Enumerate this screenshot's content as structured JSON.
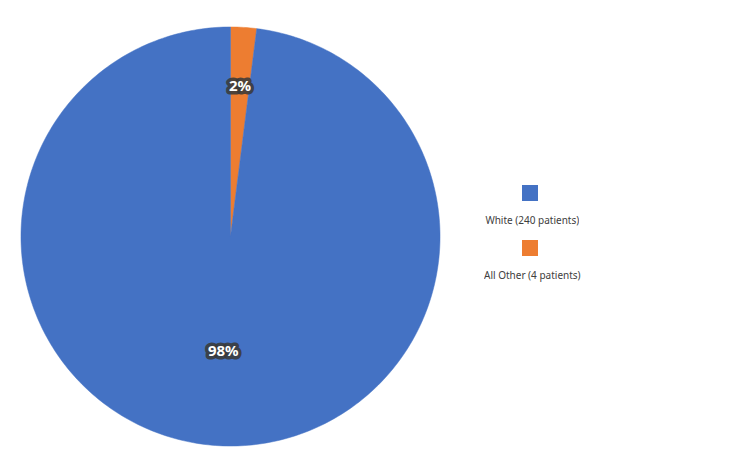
{
  "chart_data": {
    "type": "pie",
    "categories": [
      "White (240 patients)",
      "All Other (4 patients)"
    ],
    "values": [
      98,
      2
    ],
    "value_labels": [
      "98%",
      "2%"
    ],
    "colors": [
      "#4472C4",
      "#ED7D31"
    ],
    "data_labels": true,
    "legend": "right"
  }
}
